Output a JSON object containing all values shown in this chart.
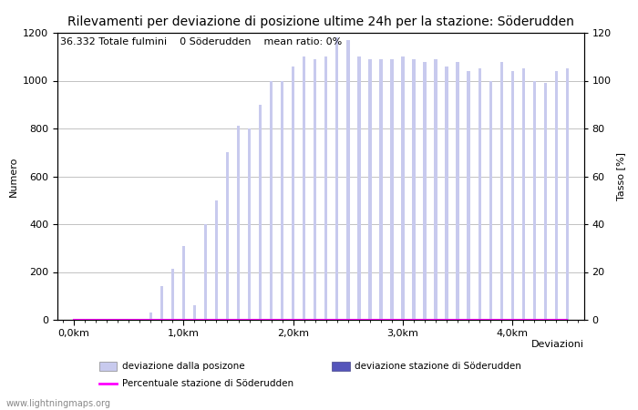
{
  "title": "Rilevamenti per deviazione di posizione ultime 24h per la stazione: Söderudden",
  "subtitle": "36.332 Totale fulmini    0 Söderudden    mean ratio: 0%",
  "ylabel_left": "Numero",
  "ylabel_right": "Tasso [%]",
  "xlabel": "Deviazioni",
  "ylim_left": [
    0,
    1200
  ],
  "ylim_right": [
    0,
    120
  ],
  "bar_color_light": "#c8caee",
  "bar_color_dark": "#5555bb",
  "line_color": "#ff00ff",
  "bar_width": 0.028,
  "x_tick_labels": [
    "0,0km",
    "1,0km",
    "2,0km",
    "3,0km",
    "4,0km"
  ],
  "x_tick_positions": [
    0.0,
    1.0,
    2.0,
    3.0,
    4.0
  ],
  "legend_label_light": "deviazione dalla posizone",
  "legend_label_dark": "deviazione stazione di Söderudden",
  "legend_label_line": "Percentuale stazione di Söderudden",
  "website": "www.lightningmaps.org",
  "bar_positions": [
    0.0,
    0.1,
    0.2,
    0.3,
    0.4,
    0.5,
    0.6,
    0.7,
    0.8,
    0.9,
    1.0,
    1.1,
    1.2,
    1.3,
    1.4,
    1.5,
    1.6,
    1.7,
    1.8,
    1.9,
    2.0,
    2.1,
    2.2,
    2.3,
    2.4,
    2.5,
    2.6,
    2.7,
    2.8,
    2.9,
    3.0,
    3.1,
    3.2,
    3.3,
    3.4,
    3.5,
    3.6,
    3.7,
    3.8,
    3.9,
    4.0,
    4.1,
    4.2,
    4.3,
    4.4,
    4.5
  ],
  "bar_heights": [
    0,
    0,
    0,
    0,
    0,
    0,
    5,
    30,
    140,
    215,
    310,
    60,
    400,
    500,
    700,
    810,
    800,
    900,
    1000,
    1000,
    1060,
    1100,
    1090,
    1100,
    1180,
    1170,
    1100,
    1090,
    1090,
    1090,
    1100,
    1090,
    1080,
    1090,
    1060,
    1080,
    1040,
    1050,
    1000,
    1080,
    1040,
    1050,
    1000,
    990,
    1040,
    1050
  ],
  "station_heights": [
    0,
    0,
    0,
    0,
    0,
    0,
    0,
    0,
    0,
    0,
    0,
    0,
    0,
    0,
    0,
    0,
    0,
    0,
    0,
    0,
    0,
    0,
    0,
    0,
    0,
    0,
    0,
    0,
    0,
    0,
    0,
    0,
    0,
    0,
    0,
    0,
    0,
    0,
    0,
    0,
    0,
    0,
    0,
    0,
    0,
    0
  ],
  "ratio_values": [
    0,
    0,
    0,
    0,
    0,
    0,
    0,
    0,
    0,
    0,
    0,
    0,
    0,
    0,
    0,
    0,
    0,
    0,
    0,
    0,
    0,
    0,
    0,
    0,
    0,
    0,
    0,
    0,
    0,
    0,
    0,
    0,
    0,
    0,
    0,
    0,
    0,
    0,
    0,
    0,
    0,
    0,
    0,
    0,
    0,
    0
  ],
  "grid_color": "#aaaaaa",
  "title_fontsize": 10,
  "axis_fontsize": 8,
  "subtitle_fontsize": 8
}
